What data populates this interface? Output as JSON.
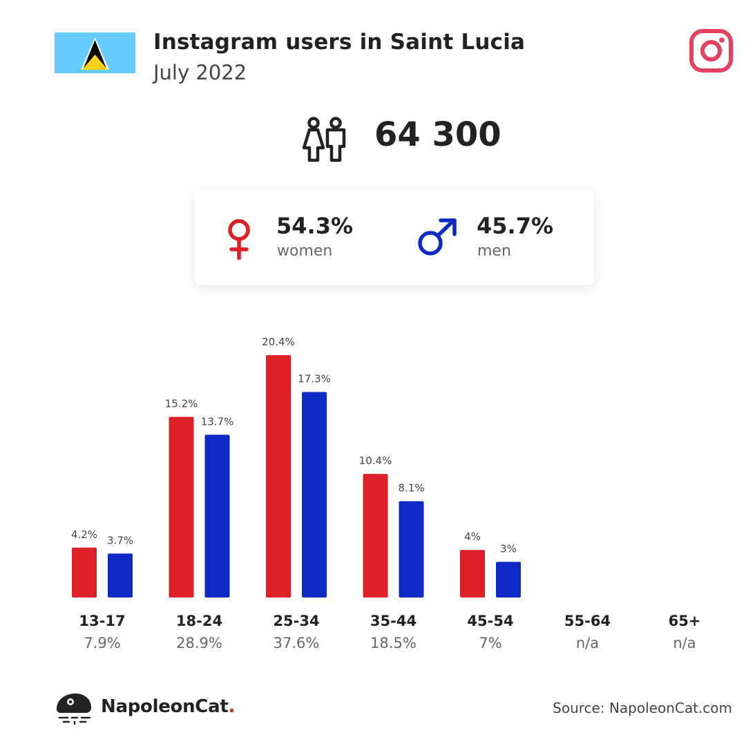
{
  "header": {
    "title": "Instagram users in Saint Lucia",
    "subtitle": "July 2022",
    "flag_icon": "saint-lucia-flag-icon",
    "platform_icon": "instagram-icon"
  },
  "total": {
    "icon": "users-icon",
    "value": "64 300"
  },
  "gender": {
    "women": {
      "percent": "54.3%",
      "label": "women",
      "icon": "female-icon"
    },
    "men": {
      "percent": "45.7%",
      "label": "men",
      "icon": "male-icon"
    }
  },
  "colors": {
    "women": "#dd1f27",
    "men": "#0e2ac4",
    "instagram": "#e4405f",
    "flag_sky": "#66ccff",
    "flag_gold": "#fcd116"
  },
  "chart_data": {
    "type": "bar",
    "categories": [
      "13-17",
      "18-24",
      "25-34",
      "35-44",
      "45-54",
      "55-64",
      "65+"
    ],
    "totals": [
      "7.9%",
      "28.9%",
      "37.6%",
      "18.5%",
      "7%",
      "n/a",
      "n/a"
    ],
    "series": [
      {
        "values": [
          4.2,
          15.2,
          20.4,
          10.4,
          4,
          null,
          null
        ],
        "labels": [
          "4.2%",
          "15.2%",
          "20.4%",
          "10.4%",
          "4%",
          "",
          ""
        ]
      },
      {
        "values": [
          3.7,
          13.7,
          17.3,
          8.1,
          3,
          null,
          null
        ],
        "labels": [
          "3.7%",
          "13.7%",
          "17.3%",
          "8.1%",
          "3%",
          "",
          ""
        ]
      }
    ]
  },
  "footer": {
    "brand_name": "NapoleonCat",
    "brand_dot": ".",
    "brand_icon": "napoleoncat-logo-icon",
    "source": "Source: NapoleonCat.com"
  }
}
